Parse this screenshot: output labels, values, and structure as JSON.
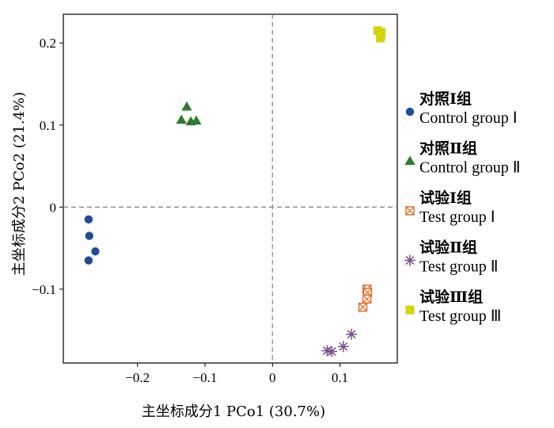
{
  "chart_data": {
    "type": "scatter",
    "xlabel": "主坐标成分1 PCo1 (30.7%)",
    "ylabel": "主坐标成分2 PCo2 (21.4%)",
    "xlim": [
      -0.31,
      0.185
    ],
    "ylim": [
      -0.19,
      0.235
    ],
    "x_ticks": [
      -0.2,
      -0.1,
      0,
      0.1
    ],
    "x_tick_labels": [
      "−0.2",
      "−0.1",
      "0",
      "0.1"
    ],
    "y_ticks": [
      -0.1,
      0,
      0.1,
      0.2
    ],
    "y_tick_labels": [
      "−0.1",
      "0",
      "0.1",
      "0.2"
    ],
    "reference_lines": {
      "x": 0,
      "y": 0,
      "style": "dashed"
    },
    "grid": false,
    "legend_position": "right",
    "series": [
      {
        "name_cn": "对照Ⅰ组",
        "name_en": "Control group Ⅰ",
        "marker": "circle",
        "color": "#1f4e96",
        "points": [
          [
            -0.2725,
            -0.015
          ],
          [
            -0.2715,
            -0.035
          ],
          [
            -0.2625,
            -0.054
          ],
          [
            -0.2725,
            -0.065
          ]
        ]
      },
      {
        "name_cn": "对照Ⅱ组",
        "name_en": "Control group Ⅱ",
        "marker": "triangle",
        "color": "#2e7d2e",
        "points": [
          [
            -0.127,
            0.122
          ],
          [
            -0.135,
            0.106
          ],
          [
            -0.121,
            0.104
          ],
          [
            -0.113,
            0.105
          ]
        ]
      },
      {
        "name_cn": "试验Ⅰ组",
        "name_en": "Test group Ⅰ",
        "marker": "boxed-x",
        "color": "#e0691e",
        "points": [
          [
            0.14,
            -0.1
          ],
          [
            0.141,
            -0.104
          ],
          [
            0.14,
            -0.112
          ],
          [
            0.134,
            -0.122
          ]
        ]
      },
      {
        "name_cn": "试验Ⅱ组",
        "name_en": "Test group Ⅱ",
        "marker": "asterisk",
        "color": "#7b4f8c",
        "points": [
          [
            0.117,
            -0.155
          ],
          [
            0.105,
            -0.17
          ],
          [
            0.088,
            -0.176
          ],
          [
            0.081,
            -0.175
          ]
        ]
      },
      {
        "name_cn": "试验Ⅲ组",
        "name_en": "Test group Ⅲ",
        "marker": "square",
        "color": "#d4d40e",
        "points": [
          [
            0.156,
            0.215
          ],
          [
            0.161,
            0.213
          ],
          [
            0.16,
            0.206
          ],
          [
            0.161,
            0.21
          ]
        ]
      }
    ]
  }
}
